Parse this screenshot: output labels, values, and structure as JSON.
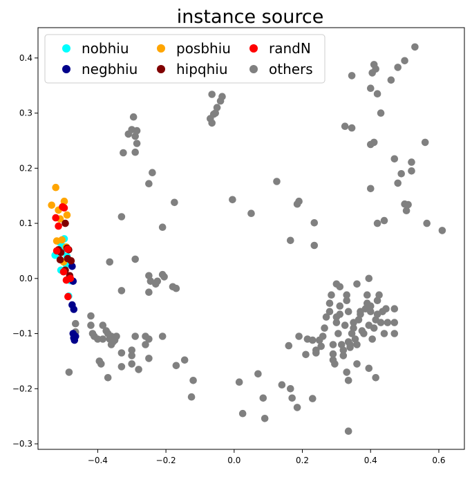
{
  "chart_data": {
    "type": "scatter",
    "title": "instance source",
    "xlabel": "",
    "ylabel": "",
    "xlim": [
      -0.575,
      0.675
    ],
    "ylim": [
      -0.31,
      0.455
    ],
    "xticks": [
      -0.4,
      -0.2,
      0.0,
      0.2,
      0.4,
      0.6
    ],
    "xtick_labels": [
      "−0.4",
      "−0.2",
      "0.0",
      "0.2",
      "0.4",
      "0.6"
    ],
    "yticks": [
      -0.3,
      -0.2,
      -0.1,
      0.0,
      0.1,
      0.2,
      0.3,
      0.4
    ],
    "ytick_labels": [
      "−0.3",
      "−0.2",
      "−0.1",
      "0.0",
      "0.1",
      "0.2",
      "0.3",
      "0.4"
    ],
    "grid": false,
    "legend_position": "top-left",
    "legend_columns": 3,
    "series": [
      {
        "name": "nobhiu",
        "color": "#00ffff",
        "points": [
          [
            -0.525,
            0.042
          ],
          [
            -0.498,
            0.072
          ],
          [
            -0.505,
            0.048
          ],
          [
            -0.508,
            0.015
          ],
          [
            -0.492,
            0.025
          ],
          [
            -0.485,
            -0.032
          ],
          [
            -0.48,
            -0.004
          ],
          [
            -0.51,
            0.065
          ],
          [
            -0.502,
            0.058
          ],
          [
            -0.49,
            0.04
          ]
        ]
      },
      {
        "name": "negbhiu",
        "color": "#00008b",
        "points": [
          [
            -0.475,
            0.022
          ],
          [
            -0.472,
            -0.005
          ],
          [
            -0.475,
            -0.048
          ],
          [
            -0.47,
            -0.056
          ],
          [
            -0.472,
            -0.1
          ],
          [
            -0.468,
            -0.112
          ],
          [
            -0.465,
            -0.105
          ],
          [
            -0.47,
            -0.108
          ]
        ]
      },
      {
        "name": "posbhiu",
        "color": "#ffa500",
        "points": [
          [
            -0.523,
            0.165
          ],
          [
            -0.535,
            0.133
          ],
          [
            -0.498,
            0.14
          ],
          [
            -0.515,
            0.124
          ],
          [
            -0.51,
            0.108
          ],
          [
            -0.49,
            0.115
          ],
          [
            -0.52,
            0.068
          ],
          [
            -0.505,
            0.07
          ],
          [
            -0.492,
            0.057
          ],
          [
            -0.5,
            0.03
          ]
        ]
      },
      {
        "name": "hipqhiu",
        "color": "#800000",
        "points": [
          [
            -0.495,
            0.1
          ],
          [
            -0.508,
            0.047
          ],
          [
            -0.515,
            0.052
          ],
          [
            -0.49,
            0.055
          ],
          [
            -0.485,
            0.052
          ],
          [
            -0.51,
            0.034
          ],
          [
            -0.488,
            0.036
          ],
          [
            -0.478,
            0.032
          ],
          [
            -0.495,
            0.015
          ],
          [
            -0.482,
            0.005
          ]
        ]
      },
      {
        "name": "randN",
        "color": "#ff0000",
        "points": [
          [
            -0.503,
            0.13
          ],
          [
            -0.498,
            0.128
          ],
          [
            -0.523,
            0.11
          ],
          [
            -0.515,
            0.095
          ],
          [
            -0.488,
            0.053
          ],
          [
            -0.52,
            0.05
          ],
          [
            -0.5,
            0.012
          ],
          [
            -0.48,
            0.0
          ],
          [
            -0.492,
            -0.003
          ],
          [
            -0.487,
            -0.033
          ]
        ]
      },
      {
        "name": "others",
        "color": "#808080",
        "points": [
          [
            -0.484,
            -0.17
          ],
          [
            -0.465,
            -0.082
          ],
          [
            -0.465,
            -0.097
          ],
          [
            -0.42,
            -0.068
          ],
          [
            -0.42,
            -0.085
          ],
          [
            -0.415,
            -0.1
          ],
          [
            -0.41,
            -0.105
          ],
          [
            -0.4,
            -0.11
          ],
          [
            -0.385,
            -0.085
          ],
          [
            -0.385,
            -0.11
          ],
          [
            -0.375,
            -0.095
          ],
          [
            -0.37,
            -0.1
          ],
          [
            -0.365,
            -0.11
          ],
          [
            -0.36,
            -0.105
          ],
          [
            -0.355,
            -0.115
          ],
          [
            -0.35,
            -0.112
          ],
          [
            -0.345,
            -0.105
          ],
          [
            -0.395,
            -0.15
          ],
          [
            -0.39,
            -0.155
          ],
          [
            -0.36,
            -0.12
          ],
          [
            -0.33,
            -0.135
          ],
          [
            -0.3,
            -0.13
          ],
          [
            -0.3,
            -0.14
          ],
          [
            -0.3,
            -0.155
          ],
          [
            -0.33,
            -0.16
          ],
          [
            -0.28,
            -0.165
          ],
          [
            -0.25,
            -0.145
          ],
          [
            -0.26,
            -0.12
          ],
          [
            -0.25,
            -0.11
          ],
          [
            -0.26,
            -0.105
          ],
          [
            -0.21,
            -0.105
          ],
          [
            -0.29,
            -0.105
          ],
          [
            -0.17,
            -0.158
          ],
          [
            -0.145,
            -0.148
          ],
          [
            -0.12,
            -0.185
          ],
          [
            -0.125,
            -0.215
          ],
          [
            -0.37,
            -0.18
          ],
          [
            -0.365,
            0.03
          ],
          [
            -0.33,
            0.112
          ],
          [
            -0.33,
            -0.022
          ],
          [
            -0.29,
            0.035
          ],
          [
            -0.25,
            0.005
          ],
          [
            -0.245,
            -0.005
          ],
          [
            -0.23,
            -0.01
          ],
          [
            -0.225,
            -0.005
          ],
          [
            -0.21,
            0.007
          ],
          [
            -0.205,
            0.003
          ],
          [
            -0.18,
            -0.015
          ],
          [
            -0.17,
            -0.018
          ],
          [
            -0.25,
            -0.025
          ],
          [
            -0.21,
            0.093
          ],
          [
            -0.175,
            0.138
          ],
          [
            -0.25,
            0.172
          ],
          [
            -0.24,
            0.192
          ],
          [
            -0.325,
            0.228
          ],
          [
            -0.31,
            0.262
          ],
          [
            -0.3,
            0.27
          ],
          [
            -0.295,
            0.293
          ],
          [
            -0.29,
            0.258
          ],
          [
            -0.285,
            0.268
          ],
          [
            -0.29,
            0.229
          ],
          [
            -0.285,
            0.245
          ],
          [
            -0.07,
            0.29
          ],
          [
            -0.065,
            0.282
          ],
          [
            -0.06,
            0.298
          ],
          [
            -0.055,
            0.3
          ],
          [
            -0.05,
            0.31
          ],
          [
            -0.04,
            0.322
          ],
          [
            -0.035,
            0.33
          ],
          [
            -0.065,
            0.334
          ],
          [
            -0.005,
            0.143
          ],
          [
            0.05,
            0.118
          ],
          [
            0.125,
            0.176
          ],
          [
            0.165,
            0.069
          ],
          [
            0.185,
            0.135
          ],
          [
            0.19,
            0.14
          ],
          [
            0.235,
            0.101
          ],
          [
            0.235,
            0.06
          ],
          [
            0.015,
            -0.188
          ],
          [
            0.025,
            -0.245
          ],
          [
            0.07,
            -0.173
          ],
          [
            0.085,
            -0.217
          ],
          [
            0.09,
            -0.254
          ],
          [
            0.14,
            -0.193
          ],
          [
            0.165,
            -0.2
          ],
          [
            0.17,
            -0.217
          ],
          [
            0.185,
            -0.234
          ],
          [
            0.23,
            -0.218
          ],
          [
            0.16,
            -0.122
          ],
          [
            0.19,
            -0.105
          ],
          [
            0.21,
            -0.138
          ],
          [
            0.215,
            -0.11
          ],
          [
            0.23,
            -0.112
          ],
          [
            0.24,
            -0.13
          ],
          [
            0.24,
            -0.135
          ],
          [
            0.25,
            -0.112
          ],
          [
            0.255,
            -0.123
          ],
          [
            0.26,
            -0.105
          ],
          [
            0.265,
            -0.09
          ],
          [
            0.27,
            -0.07
          ],
          [
            0.28,
            -0.06
          ],
          [
            0.28,
            -0.045
          ],
          [
            0.285,
            -0.03
          ],
          [
            0.29,
            -0.12
          ],
          [
            0.29,
            -0.137
          ],
          [
            0.29,
            -0.148
          ],
          [
            0.295,
            -0.155
          ],
          [
            0.3,
            -0.07
          ],
          [
            0.3,
            -0.08
          ],
          [
            0.305,
            -0.1
          ],
          [
            0.31,
            -0.05
          ],
          [
            0.31,
            -0.065
          ],
          [
            0.315,
            -0.12
          ],
          [
            0.32,
            -0.13
          ],
          [
            0.32,
            -0.14
          ],
          [
            0.325,
            -0.085
          ],
          [
            0.33,
            -0.03
          ],
          [
            0.33,
            -0.04
          ],
          [
            0.335,
            -0.06
          ],
          [
            0.335,
            -0.115
          ],
          [
            0.34,
            -0.12
          ],
          [
            0.34,
            -0.125
          ],
          [
            0.345,
            -0.1
          ],
          [
            0.35,
            -0.08
          ],
          [
            0.35,
            -0.09
          ],
          [
            0.355,
            -0.11
          ],
          [
            0.36,
            -0.12
          ],
          [
            0.365,
            -0.075
          ],
          [
            0.37,
            -0.06
          ],
          [
            0.37,
            -0.065
          ],
          [
            0.375,
            -0.095
          ],
          [
            0.38,
            -0.1
          ],
          [
            0.385,
            -0.055
          ],
          [
            0.39,
            -0.03
          ],
          [
            0.39,
            -0.045
          ],
          [
            0.395,
            -0.085
          ],
          [
            0.4,
            -0.05
          ],
          [
            0.4,
            -0.06
          ],
          [
            0.405,
            -0.11
          ],
          [
            0.41,
            -0.09
          ],
          [
            0.415,
            -0.075
          ],
          [
            0.42,
            -0.065
          ],
          [
            0.42,
            -0.04
          ],
          [
            0.425,
            -0.03
          ],
          [
            0.43,
            -0.08
          ],
          [
            0.435,
            -0.06
          ],
          [
            0.44,
            -0.1
          ],
          [
            0.445,
            -0.055
          ],
          [
            0.45,
            -0.08
          ],
          [
            0.47,
            -0.1
          ],
          [
            0.47,
            -0.08
          ],
          [
            0.47,
            -0.055
          ],
          [
            0.31,
            -0.015
          ],
          [
            0.3,
            -0.01
          ],
          [
            0.36,
            -0.01
          ],
          [
            0.395,
            0.0
          ],
          [
            0.33,
            -0.17
          ],
          [
            0.335,
            -0.185
          ],
          [
            0.36,
            -0.155
          ],
          [
            0.395,
            -0.163
          ],
          [
            0.415,
            -0.18
          ],
          [
            0.335,
            -0.277
          ],
          [
            0.325,
            0.276
          ],
          [
            0.345,
            0.273
          ],
          [
            0.345,
            0.368
          ],
          [
            0.4,
            0.345
          ],
          [
            0.405,
            0.373
          ],
          [
            0.415,
            0.38
          ],
          [
            0.41,
            0.388
          ],
          [
            0.42,
            0.335
          ],
          [
            0.43,
            0.3
          ],
          [
            0.4,
            0.243
          ],
          [
            0.41,
            0.247
          ],
          [
            0.4,
            0.163
          ],
          [
            0.42,
            0.1
          ],
          [
            0.44,
            0.105
          ],
          [
            0.46,
            0.36
          ],
          [
            0.48,
            0.383
          ],
          [
            0.5,
            0.395
          ],
          [
            0.53,
            0.42
          ],
          [
            0.47,
            0.217
          ],
          [
            0.48,
            0.173
          ],
          [
            0.49,
            0.19
          ],
          [
            0.52,
            0.211
          ],
          [
            0.52,
            0.195
          ],
          [
            0.5,
            0.135
          ],
          [
            0.505,
            0.123
          ],
          [
            0.51,
            0.134
          ],
          [
            0.56,
            0.247
          ],
          [
            0.565,
            0.1
          ],
          [
            0.61,
            0.087
          ]
        ]
      }
    ]
  }
}
